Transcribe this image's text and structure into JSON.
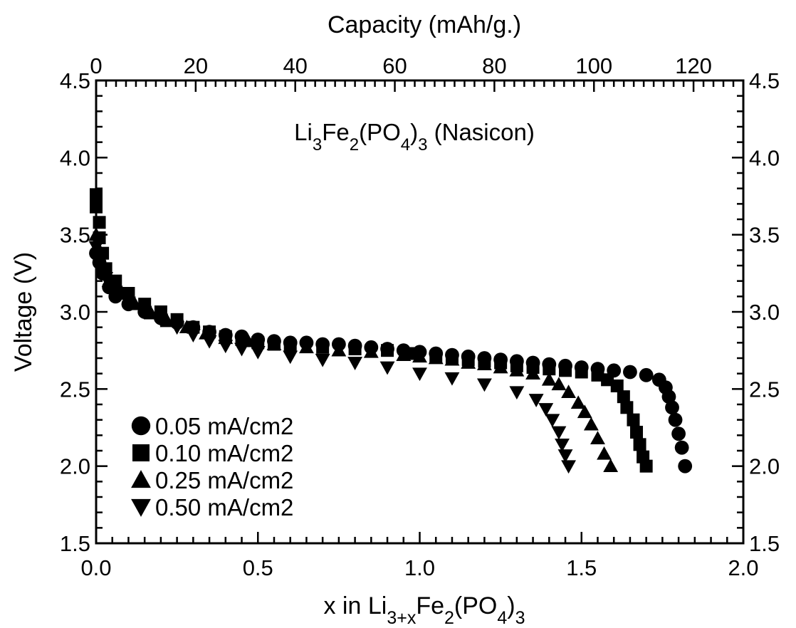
{
  "chart_data": {
    "type": "scatter",
    "annotation": {
      "parts": [
        {
          "text": "Li",
          "sub": false
        },
        {
          "text": "3",
          "sub": true
        },
        {
          "text": "Fe",
          "sub": false
        },
        {
          "text": "2",
          "sub": true
        },
        {
          "text": "(PO",
          "sub": false
        },
        {
          "text": "4",
          "sub": true
        },
        {
          "text": ")",
          "sub": false
        },
        {
          "text": "3",
          "sub": true
        },
        {
          "text": " (Nasicon)",
          "sub": false
        }
      ]
    },
    "xlabel": {
      "parts": [
        {
          "text": "x in Li",
          "sub": false
        },
        {
          "text": "3+x",
          "sub": true
        },
        {
          "text": "Fe",
          "sub": false
        },
        {
          "text": "2",
          "sub": true
        },
        {
          "text": "(PO",
          "sub": false
        },
        {
          "text": "4",
          "sub": true
        },
        {
          "text": ")",
          "sub": false
        },
        {
          "text": "3",
          "sub": true
        }
      ]
    },
    "ylabel": "Voltage (V)",
    "top_xlabel": "Capacity (mAh/g.)",
    "xlim": [
      0.0,
      2.0
    ],
    "ylim": [
      1.5,
      4.5
    ],
    "top_xlim": [
      0,
      130
    ],
    "x_ticks": [
      "0.0",
      "0.5",
      "1.0",
      "1.5",
      "2.0"
    ],
    "y_ticks": [
      "1.5",
      "2.0",
      "2.5",
      "3.0",
      "3.5",
      "4.0",
      "4.5"
    ],
    "top_ticks": [
      "0",
      "20",
      "40",
      "60",
      "80",
      "100",
      "120"
    ],
    "legend_position": "bottom-left",
    "grid": false,
    "series": [
      {
        "name": "0.05 mA/cm2",
        "marker": "circle",
        "points": [
          [
            0.0,
            3.38
          ],
          [
            0.01,
            3.32
          ],
          [
            0.02,
            3.25
          ],
          [
            0.04,
            3.16
          ],
          [
            0.06,
            3.1
          ],
          [
            0.1,
            3.05
          ],
          [
            0.15,
            3.0
          ],
          [
            0.2,
            2.96
          ],
          [
            0.25,
            2.93
          ],
          [
            0.3,
            2.9
          ],
          [
            0.35,
            2.87
          ],
          [
            0.4,
            2.85
          ],
          [
            0.45,
            2.84
          ],
          [
            0.5,
            2.82
          ],
          [
            0.55,
            2.81
          ],
          [
            0.6,
            2.8
          ],
          [
            0.65,
            2.8
          ],
          [
            0.7,
            2.79
          ],
          [
            0.75,
            2.79
          ],
          [
            0.8,
            2.78
          ],
          [
            0.85,
            2.77
          ],
          [
            0.9,
            2.76
          ],
          [
            0.95,
            2.75
          ],
          [
            1.0,
            2.74
          ],
          [
            1.05,
            2.73
          ],
          [
            1.1,
            2.72
          ],
          [
            1.15,
            2.71
          ],
          [
            1.2,
            2.7
          ],
          [
            1.25,
            2.69
          ],
          [
            1.3,
            2.68
          ],
          [
            1.35,
            2.67
          ],
          [
            1.4,
            2.66
          ],
          [
            1.45,
            2.65
          ],
          [
            1.5,
            2.64
          ],
          [
            1.55,
            2.63
          ],
          [
            1.6,
            2.62
          ],
          [
            1.65,
            2.61
          ],
          [
            1.7,
            2.59
          ],
          [
            1.74,
            2.56
          ],
          [
            1.76,
            2.51
          ],
          [
            1.77,
            2.45
          ],
          [
            1.78,
            2.38
          ],
          [
            1.79,
            2.3
          ],
          [
            1.8,
            2.21
          ],
          [
            1.81,
            2.12
          ],
          [
            1.82,
            2.0
          ]
        ]
      },
      {
        "name": "0.10 mA/cm2",
        "marker": "square",
        "points": [
          [
            0.0,
            3.76
          ],
          [
            0.0,
            3.68
          ],
          [
            0.01,
            3.58
          ],
          [
            0.01,
            3.48
          ],
          [
            0.02,
            3.38
          ],
          [
            0.03,
            3.28
          ],
          [
            0.06,
            3.2
          ],
          [
            0.1,
            3.12
          ],
          [
            0.15,
            3.05
          ],
          [
            0.2,
            3.0
          ],
          [
            0.25,
            2.95
          ],
          [
            0.3,
            2.9
          ],
          [
            0.35,
            2.87
          ],
          [
            0.4,
            2.84
          ],
          [
            0.45,
            2.82
          ],
          [
            0.5,
            2.8
          ],
          [
            0.55,
            2.79
          ],
          [
            0.6,
            2.78
          ],
          [
            0.7,
            2.77
          ],
          [
            0.8,
            2.76
          ],
          [
            0.9,
            2.75
          ],
          [
            0.98,
            2.73
          ],
          [
            1.05,
            2.71
          ],
          [
            1.1,
            2.7
          ],
          [
            1.15,
            2.69
          ],
          [
            1.2,
            2.68
          ],
          [
            1.25,
            2.67
          ],
          [
            1.3,
            2.65
          ],
          [
            1.35,
            2.64
          ],
          [
            1.4,
            2.63
          ],
          [
            1.45,
            2.62
          ],
          [
            1.5,
            2.61
          ],
          [
            1.55,
            2.59
          ],
          [
            1.58,
            2.56
          ],
          [
            1.61,
            2.52
          ],
          [
            1.63,
            2.45
          ],
          [
            1.64,
            2.38
          ],
          [
            1.66,
            2.3
          ],
          [
            1.67,
            2.22
          ],
          [
            1.68,
            2.14
          ],
          [
            1.69,
            2.06
          ],
          [
            1.7,
            2.0
          ]
        ]
      },
      {
        "name": "0.25 mA/cm2",
        "marker": "triangle-up",
        "points": [
          [
            0.0,
            3.5
          ],
          [
            0.01,
            3.4
          ],
          [
            0.02,
            3.3
          ],
          [
            0.04,
            3.2
          ],
          [
            0.08,
            3.12
          ],
          [
            0.12,
            3.05
          ],
          [
            0.17,
            2.99
          ],
          [
            0.22,
            2.94
          ],
          [
            0.28,
            2.9
          ],
          [
            0.34,
            2.86
          ],
          [
            0.4,
            2.83
          ],
          [
            0.47,
            2.81
          ],
          [
            0.55,
            2.79
          ],
          [
            0.65,
            2.77
          ],
          [
            0.75,
            2.75
          ],
          [
            0.85,
            2.74
          ],
          [
            0.95,
            2.72
          ],
          [
            1.0,
            2.71
          ],
          [
            1.05,
            2.7
          ],
          [
            1.1,
            2.69
          ],
          [
            1.15,
            2.67
          ],
          [
            1.2,
            2.66
          ],
          [
            1.25,
            2.64
          ],
          [
            1.3,
            2.62
          ],
          [
            1.35,
            2.6
          ],
          [
            1.4,
            2.56
          ],
          [
            1.43,
            2.53
          ],
          [
            1.46,
            2.48
          ],
          [
            1.49,
            2.41
          ],
          [
            1.51,
            2.35
          ],
          [
            1.53,
            2.27
          ],
          [
            1.55,
            2.18
          ],
          [
            1.57,
            2.08
          ],
          [
            1.59,
            2.0
          ]
        ]
      },
      {
        "name": "0.50 mA/cm2",
        "marker": "triangle-down",
        "points": [
          [
            0.0,
            3.42
          ],
          [
            0.01,
            3.32
          ],
          [
            0.03,
            3.22
          ],
          [
            0.06,
            3.13
          ],
          [
            0.1,
            3.06
          ],
          [
            0.15,
            3.0
          ],
          [
            0.2,
            2.95
          ],
          [
            0.25,
            2.9
          ],
          [
            0.3,
            2.85
          ],
          [
            0.35,
            2.81
          ],
          [
            0.4,
            2.78
          ],
          [
            0.45,
            2.76
          ],
          [
            0.5,
            2.74
          ],
          [
            0.6,
            2.71
          ],
          [
            0.7,
            2.69
          ],
          [
            0.8,
            2.67
          ],
          [
            0.9,
            2.64
          ],
          [
            1.0,
            2.6
          ],
          [
            1.1,
            2.57
          ],
          [
            1.2,
            2.53
          ],
          [
            1.3,
            2.48
          ],
          [
            1.36,
            2.43
          ],
          [
            1.39,
            2.37
          ],
          [
            1.41,
            2.3
          ],
          [
            1.43,
            2.22
          ],
          [
            1.44,
            2.14
          ],
          [
            1.45,
            2.07
          ],
          [
            1.46,
            2.0
          ]
        ]
      }
    ]
  }
}
